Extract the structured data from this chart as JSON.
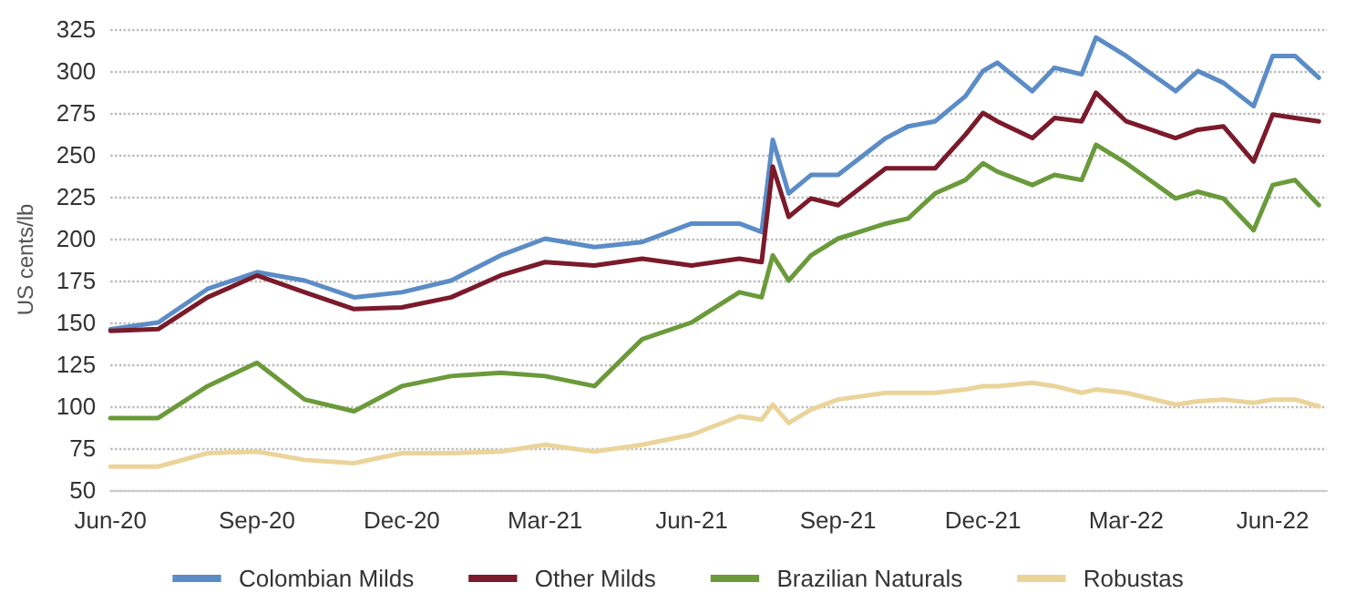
{
  "chart_data": {
    "type": "line",
    "ylabel": "US cents/lb",
    "x": [
      "2020-06-01",
      "2020-07-01",
      "2020-08-01",
      "2020-09-01",
      "2020-10-01",
      "2020-11-01",
      "2020-12-01",
      "2021-01-01",
      "2021-02-01",
      "2021-03-01",
      "2021-04-01",
      "2021-05-01",
      "2021-06-01",
      "2021-07-01",
      "2021-07-15",
      "2021-07-22",
      "2021-08-01",
      "2021-08-15",
      "2021-09-01",
      "2021-10-01",
      "2021-10-15",
      "2021-11-01",
      "2021-11-20",
      "2021-12-01",
      "2021-12-10",
      "2022-01-01",
      "2022-01-15",
      "2022-02-01",
      "2022-02-10",
      "2022-03-01",
      "2022-04-01",
      "2022-04-15",
      "2022-05-01",
      "2022-05-20",
      "2022-06-01",
      "2022-06-15",
      "2022-06-30"
    ],
    "series": [
      {
        "name": "Colombian Milds",
        "color": "#5b8cc6",
        "values": [
          146,
          150,
          170,
          180,
          175,
          165,
          168,
          175,
          190,
          200,
          195,
          198,
          209,
          209,
          204,
          259,
          227,
          238,
          238,
          260,
          267,
          270,
          285,
          300,
          305,
          288,
          302,
          298,
          320,
          309,
          288,
          300,
          293,
          279,
          309,
          309,
          296
        ]
      },
      {
        "name": "Other Milds",
        "color": "#7b1a2a",
        "values": [
          145,
          146,
          165,
          178,
          168,
          158,
          159,
          165,
          178,
          186,
          184,
          188,
          184,
          188,
          186,
          243,
          213,
          224,
          220,
          242,
          242,
          242,
          262,
          275,
          270,
          260,
          272,
          270,
          287,
          270,
          260,
          265,
          267,
          246,
          274,
          272,
          270
        ]
      },
      {
        "name": "Brazilian Naturals",
        "color": "#6a9a3a",
        "values": [
          93,
          93,
          112,
          126,
          104,
          97,
          112,
          118,
          120,
          118,
          112,
          140,
          150,
          168,
          165,
          190,
          175,
          190,
          200,
          209,
          212,
          227,
          235,
          245,
          240,
          232,
          238,
          235,
          256,
          245,
          224,
          228,
          224,
          205,
          232,
          235,
          220
        ]
      },
      {
        "name": "Robustas",
        "color": "#ead49a",
        "values": [
          64,
          64,
          72,
          73,
          68,
          66,
          72,
          72,
          73,
          77,
          73,
          77,
          83,
          94,
          92,
          101,
          90,
          98,
          104,
          108,
          108,
          108,
          110,
          112,
          112,
          114,
          112,
          108,
          110,
          108,
          101,
          103,
          104,
          102,
          104,
          104,
          100
        ]
      }
    ],
    "xlim": [
      "2020-06-01",
      "2022-07-05"
    ],
    "xticks": [
      {
        "value": "2020-06-01",
        "label": "Jun-20"
      },
      {
        "value": "2020-09-01",
        "label": "Sep-20"
      },
      {
        "value": "2020-12-01",
        "label": "Dec-20"
      },
      {
        "value": "2021-03-01",
        "label": "Mar-21"
      },
      {
        "value": "2021-06-01",
        "label": "Jun-21"
      },
      {
        "value": "2021-09-01",
        "label": "Sep-21"
      },
      {
        "value": "2021-12-01",
        "label": "Dec-21"
      },
      {
        "value": "2022-03-01",
        "label": "Mar-22"
      },
      {
        "value": "2022-06-01",
        "label": "Jun-22"
      }
    ],
    "ylim": [
      50,
      325
    ],
    "yticks": [
      50,
      75,
      100,
      125,
      150,
      175,
      200,
      225,
      250,
      275,
      300,
      325
    ],
    "grid": "y",
    "legend": "bottom",
    "marker": "none",
    "line_style": "solid"
  }
}
